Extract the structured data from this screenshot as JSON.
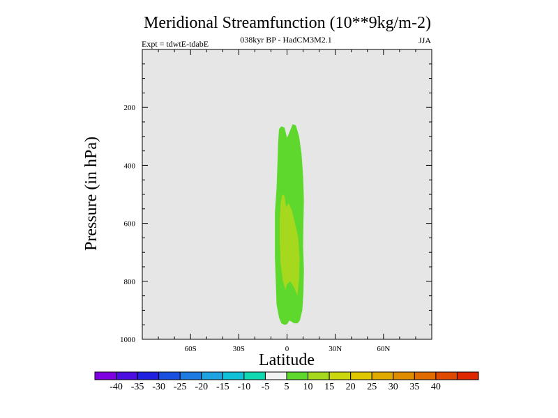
{
  "chart_data": {
    "type": "contour",
    "title": "Meridional Streamfunction (10**9kg/m-2)",
    "subtitle": "038kyr BP - HadCM3M2.1",
    "experiment_label": "Expt = tdwtE-tdabE",
    "season_label": "JJA",
    "xlabel": "Latitude",
    "ylabel": "Pressure (in hPa)",
    "xlim": [
      -90,
      90
    ],
    "ylim": [
      1000,
      0
    ],
    "x_tick_values": [
      -60,
      -30,
      0,
      30,
      60
    ],
    "x_tick_labels": [
      "60S",
      "30S",
      "0",
      "30N",
      "60N"
    ],
    "y_tick_values": [
      200,
      400,
      600,
      800,
      1000
    ],
    "y_tick_labels": [
      "200",
      "400",
      "600",
      "800",
      "1000"
    ],
    "plot_background": "#e6e6e6",
    "contour_regions": [
      {
        "level": "5 to 10",
        "color": "#5ed82c",
        "polygon": [
          [
            -3.5,
            265
          ],
          [
            -1.5,
            270
          ],
          [
            0,
            305
          ],
          [
            1.5,
            285
          ],
          [
            3.5,
            258
          ],
          [
            5.5,
            262
          ],
          [
            7.5,
            300
          ],
          [
            9,
            360
          ],
          [
            10,
            440
          ],
          [
            10.5,
            520
          ],
          [
            10.2,
            600
          ],
          [
            10,
            680
          ],
          [
            10.5,
            760
          ],
          [
            10.2,
            840
          ],
          [
            9.5,
            900
          ],
          [
            8,
            935
          ],
          [
            6.5,
            945
          ],
          [
            4.5,
            945
          ],
          [
            3,
            940
          ],
          [
            1.5,
            935
          ],
          [
            0,
            948
          ],
          [
            -1.5,
            950
          ],
          [
            -3.5,
            945
          ],
          [
            -5,
            925
          ],
          [
            -6.5,
            880
          ],
          [
            -7,
            800
          ],
          [
            -7.5,
            720
          ],
          [
            -7.5,
            640
          ],
          [
            -7.5,
            560
          ],
          [
            -6.5,
            480
          ],
          [
            -6,
            400
          ],
          [
            -5.5,
            320
          ],
          [
            -5,
            275
          ]
        ]
      },
      {
        "level": "10 to 15",
        "color": "#a6d81e",
        "polygon": [
          [
            -3,
            500
          ],
          [
            -1.5,
            505
          ],
          [
            -0.5,
            545
          ],
          [
            1,
            530
          ],
          [
            3,
            555
          ],
          [
            5,
            600
          ],
          [
            7,
            650
          ],
          [
            7.8,
            720
          ],
          [
            7.5,
            790
          ],
          [
            6.5,
            850
          ],
          [
            4.5,
            822
          ],
          [
            2,
            800
          ],
          [
            0,
            810
          ],
          [
            -1,
            830
          ],
          [
            -2.5,
            800
          ],
          [
            -4,
            740
          ],
          [
            -4.5,
            660
          ],
          [
            -4.5,
            590
          ],
          [
            -4,
            530
          ]
        ]
      }
    ],
    "colorbar": {
      "colors": [
        "#7f00e0",
        "#4b0fe0",
        "#2020e0",
        "#1a50e0",
        "#1d7ae0",
        "#1ea2e0",
        "#10c0d6",
        "#10d8b0",
        "#f2f2f2",
        "#5ed82c",
        "#a6d81e",
        "#ccd60c",
        "#e0c800",
        "#e0aa00",
        "#e08c00",
        "#e06c00",
        "#e04a00",
        "#e02800"
      ],
      "labels": [
        "-40",
        "-35",
        "-30",
        "-25",
        "-20",
        "-15",
        "-10",
        "-5",
        "5",
        "10",
        "15",
        "20",
        "25",
        "30",
        "35",
        "40"
      ]
    }
  }
}
